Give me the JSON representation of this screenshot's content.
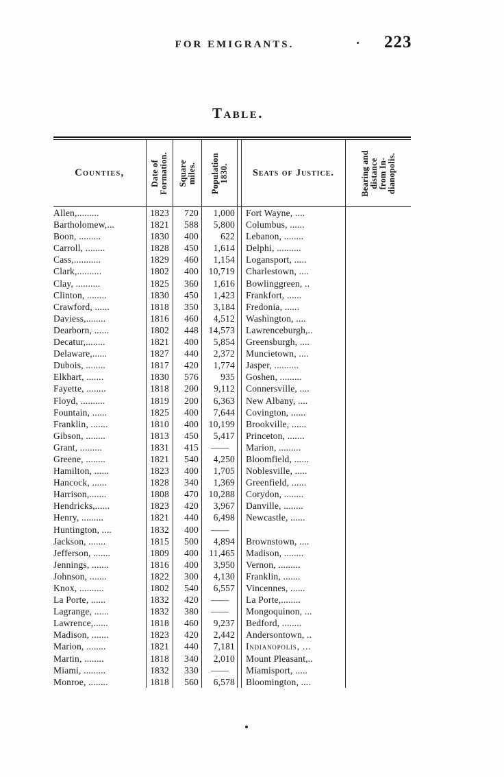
{
  "page": {
    "running_header": "FOR EMIGRANTS.",
    "page_number": "223",
    "table_title": "Table."
  },
  "table": {
    "headers": {
      "counties": "Counties,",
      "date_of_formation": "Date of\nFormation.",
      "square_miles": "Square\nmiles.",
      "population_1830": "Population\n1830.",
      "seats_of_justice": "Seats of Justice.",
      "bearing_distance": "Bearing and\ndistance\nfrom In-\ndianopolis."
    },
    "rows": [
      {
        "c": "Allen,.........",
        "d": "1823",
        "m": "720",
        "p": "1,000",
        "s": "Fort Wayne, ...."
      },
      {
        "c": "Bartholomew,...",
        "d": "1821",
        "m": "588",
        "p": "5,800",
        "s": "Columbus, ......"
      },
      {
        "c": "Boon, .........",
        "d": "1830",
        "m": "400",
        "p": "622",
        "s": "Lebanon, ........"
      },
      {
        "c": "Carroll, ........",
        "d": "1828",
        "m": "450",
        "p": "1,614",
        "s": "Delphi, .........."
      },
      {
        "c": "Cass,...........",
        "d": "1829",
        "m": "460",
        "p": "1,154",
        "s": "Logansport, ....."
      },
      {
        "c": "Clark,..........",
        "d": "1802",
        "m": "400",
        "p": "10,719",
        "s": "Charlestown, ...."
      },
      {
        "c": "Clay, ..........",
        "d": "1825",
        "m": "360",
        "p": "1,616",
        "s": "Bowlinggreen,  .."
      },
      {
        "c": "Clinton, ........",
        "d": "1830",
        "m": "450",
        "p": "1,423",
        "s": "Frankfort, ......"
      },
      {
        "c": "Crawford, ......",
        "d": "1818",
        "m": "350",
        "p": "3,184",
        "s": "Fredonia, ......"
      },
      {
        "c": "Daviess,........",
        "d": "1816",
        "m": "460",
        "p": "4,512",
        "s": "Washington, ...."
      },
      {
        "c": "Dearborn, ......",
        "d": "1802",
        "m": "448",
        "p": "14,573",
        "s": "Lawrenceburgh,.."
      },
      {
        "c": "Decatur,........",
        "d": "1821",
        "m": "400",
        "p": "5,854",
        "s": "Greensburgh, ...."
      },
      {
        "c": "Delaware,......",
        "d": "1827",
        "m": "440",
        "p": "2,372",
        "s": "Muncietown, ...."
      },
      {
        "c": "Dubois, ........",
        "d": "1817",
        "m": "420",
        "p": "1,774",
        "s": "Jasper, .........."
      },
      {
        "c": "Elkhart, .......",
        "d": "1830",
        "m": "576",
        "p": "935",
        "s": "Goshen, ........."
      },
      {
        "c": "Fayette, ........",
        "d": "1818",
        "m": "200",
        "p": "9,112",
        "s": "Connersville, ...."
      },
      {
        "c": "Floyd, ..........",
        "d": "1819",
        "m": "200",
        "p": "6,363",
        "s": "New Albany, ...."
      },
      {
        "c": "Fountain, ......",
        "d": "1825",
        "m": "400",
        "p": "7,644",
        "s": "Covington, ......"
      },
      {
        "c": "Franklin, .......",
        "d": "1810",
        "m": "400",
        "p": "10,199",
        "s": "Brookville, ......"
      },
      {
        "c": "Gibson, ........",
        "d": "1813",
        "m": "450",
        "p": "5,417",
        "s": "Princeton, ......."
      },
      {
        "c": "Grant, .........",
        "d": "1831",
        "m": "415",
        "p": "——",
        "s": "Marion, ........."
      },
      {
        "c": "Greene, ........",
        "d": "1821",
        "m": "540",
        "p": "4,250",
        "s": "Bloomfield, ......"
      },
      {
        "c": "Hamilton, ......",
        "d": "1823",
        "m": "400",
        "p": "1,705",
        "s": "Noblesville,  ....."
      },
      {
        "c": "Hancock,  ......",
        "d": "1828",
        "m": "340",
        "p": "1,369",
        "s": "Greenfield, ......"
      },
      {
        "c": "Harrison,.......",
        "d": "1808",
        "m": "470",
        "p": "10,288",
        "s": "Corydon, ........"
      },
      {
        "c": "Hendricks,......",
        "d": "1823",
        "m": "420",
        "p": "3,967",
        "s": "Danville, ........"
      },
      {
        "c": "Henry, .........",
        "d": "1821",
        "m": "440",
        "p": "6,498",
        "s": "Newcastle, ......"
      },
      {
        "c": "Huntington, ....",
        "d": "1832",
        "m": "400",
        "p": "——",
        "s": ""
      },
      {
        "c": "Jackson, .......",
        "d": "1815",
        "m": "500",
        "p": "4,894",
        "s": "Brownstown, ...."
      },
      {
        "c": "Jefferson, .......",
        "d": "1809",
        "m": "400",
        "p": "11,465",
        "s": "Madison, ........"
      },
      {
        "c": "Jennings, .......",
        "d": "1816",
        "m": "400",
        "p": "3,950",
        "s": "Vernon, ........."
      },
      {
        "c": "Johnson,  .......",
        "d": "1822",
        "m": "300",
        "p": "4,130",
        "s": "Franklin,  ......."
      },
      {
        "c": "Knox, ..........",
        "d": "1802",
        "m": "540",
        "p": "6,557",
        "s": "Vincennes, ......"
      },
      {
        "c": "La Porte,  ......",
        "d": "1832",
        "m": "420",
        "p": "——",
        "s": "La Porte,........"
      },
      {
        "c": "Lagrange, ......",
        "d": "1832",
        "m": "380",
        "p": "——",
        "s": "Mongoquinon, ..."
      },
      {
        "c": "Lawrence,......",
        "d": "1818",
        "m": "460",
        "p": "9,237",
        "s": "Bedford,  ........"
      },
      {
        "c": "Madison, .......",
        "d": "1823",
        "m": "420",
        "p": "2,442",
        "s": "Andersontown, .."
      },
      {
        "c": "Marion, ........",
        "d": "1821",
        "m": "440",
        "p": "7,181",
        "s": "Indianopolis, ...",
        "sc": true
      },
      {
        "c": "Martin,  ........",
        "d": "1818",
        "m": "340",
        "p": "2,010",
        "s": "Mount Pleasant,.."
      },
      {
        "c": "Miami, .........",
        "d": "1832",
        "m": "330",
        "p": "——",
        "s": "Miamisport, ....."
      },
      {
        "c": "Monroe, ........",
        "d": "1818",
        "m": "560",
        "p": "6,578",
        "s": "Bloomington, ...."
      }
    ]
  }
}
